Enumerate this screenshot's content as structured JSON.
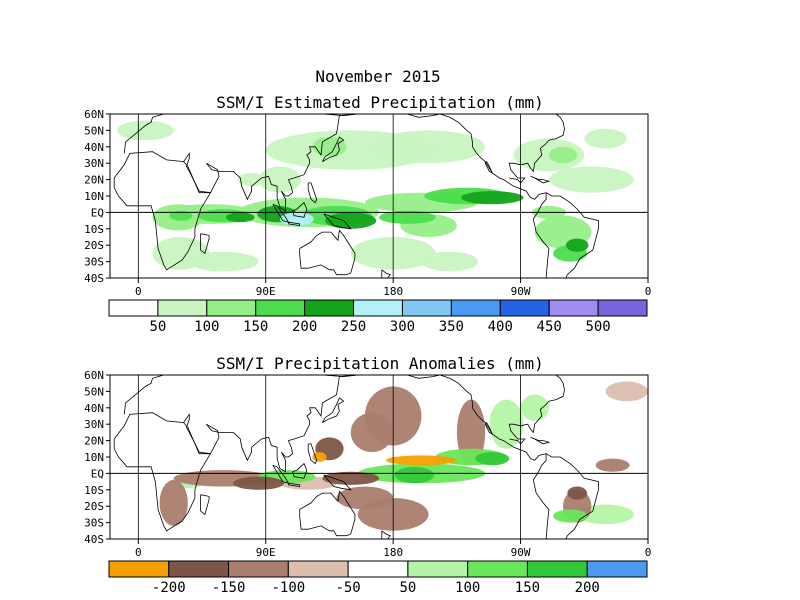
{
  "title": "November 2015",
  "chart_data": [
    {
      "type": "heatmap",
      "title": "SSM/I Estimated Precipitation (mm)",
      "xlim": [
        -20,
        360
      ],
      "ylim": [
        -40,
        60
      ],
      "x_tick_labels": [
        "0",
        "90E",
        "180",
        "90W",
        "0"
      ],
      "y_tick_labels": [
        "60N",
        "50N",
        "40N",
        "30N",
        "20N",
        "10N",
        "EQ",
        "10S",
        "20S",
        "30S",
        "40S"
      ],
      "colorbar": {
        "labels": [
          "50",
          "100",
          "150",
          "200",
          "250",
          "300",
          "350",
          "400",
          "450",
          "500"
        ],
        "colors": [
          "#ffffff",
          "#c8f5c0",
          "#96ee88",
          "#4ddc4d",
          "#12a31a",
          "#b4f0f8",
          "#82c8f5",
          "#4b9bf0",
          "#2364e6",
          "#a08cf0",
          "#7864dc"
        ]
      }
    },
    {
      "type": "heatmap",
      "title": "SSM/I Precipitation Anomalies (mm)",
      "xlim": [
        -20,
        360
      ],
      "ylim": [
        -40,
        60
      ],
      "x_tick_labels": [
        "0",
        "90E",
        "180",
        "90W",
        "0"
      ],
      "y_tick_labels": [
        "60N",
        "50N",
        "40N",
        "30N",
        "20N",
        "10N",
        "EQ",
        "10S",
        "20S",
        "30S",
        "40S"
      ],
      "colorbar": {
        "labels": [
          "-200",
          "-150",
          "-100",
          "-50",
          "50",
          "100",
          "150",
          "200"
        ],
        "colors": [
          "#f5a000",
          "#7d5546",
          "#aa7d6e",
          "#dcbeaf",
          "#ffffff",
          "#b4f5a5",
          "#69e65a",
          "#32c837",
          "#4b9bf0"
        ]
      }
    }
  ]
}
